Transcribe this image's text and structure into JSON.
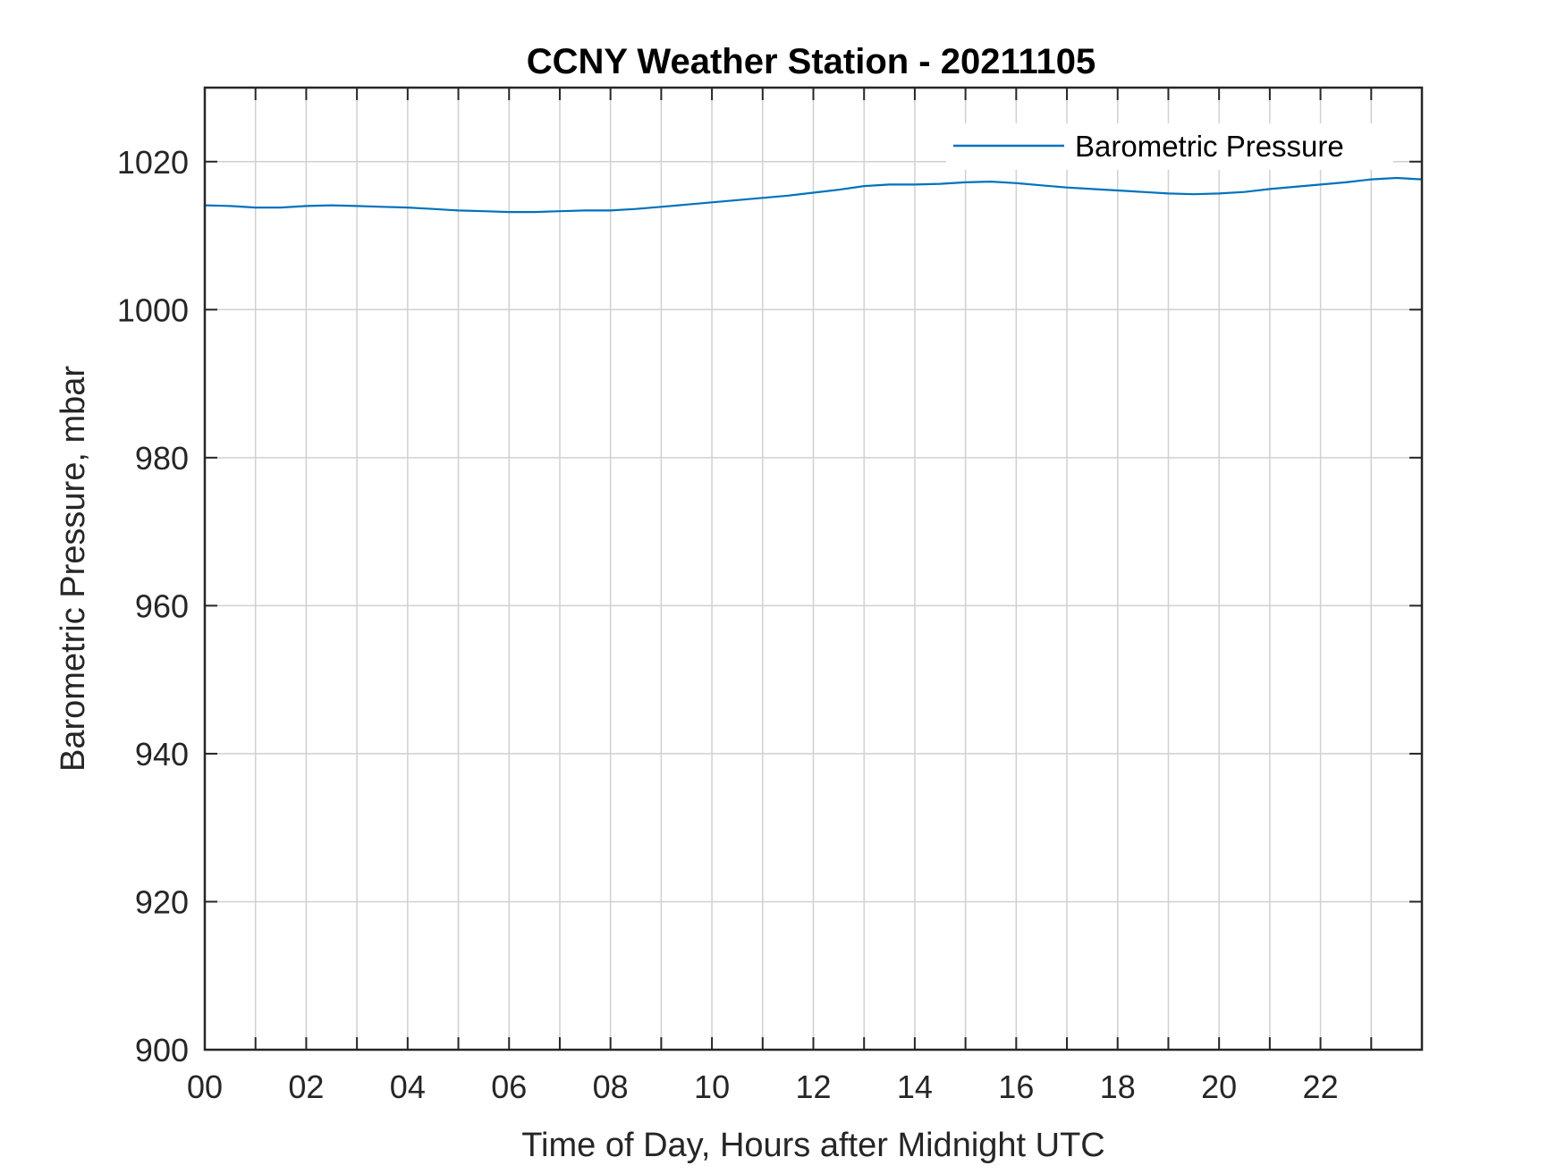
{
  "chart_data": {
    "type": "line",
    "title": "CCNY Weather Station - 20211105",
    "xlabel": "Time of Day, Hours after Midnight UTC",
    "ylabel": "Barometric Pressure, mbar",
    "xlim": [
      0,
      24
    ],
    "ylim": [
      900,
      1030
    ],
    "x_ticks": [
      0,
      2,
      4,
      6,
      8,
      10,
      12,
      14,
      16,
      18,
      20,
      22
    ],
    "x_tick_labels": [
      "00",
      "02",
      "04",
      "06",
      "08",
      "10",
      "12",
      "14",
      "16",
      "18",
      "20",
      "22"
    ],
    "x_minor_grid_step": 1,
    "y_ticks": [
      900,
      920,
      940,
      960,
      980,
      1000,
      1020
    ],
    "y_tick_labels": [
      "900",
      "920",
      "940",
      "960",
      "980",
      "1000",
      "1020"
    ],
    "grid": true,
    "legend_position": "top-right",
    "series": [
      {
        "name": "Barometric Pressure",
        "color": "#0072BD",
        "x": [
          0,
          0.5,
          1,
          1.5,
          2,
          2.5,
          3,
          3.5,
          4,
          4.5,
          5,
          5.5,
          6,
          6.5,
          7,
          7.5,
          8,
          8.5,
          9,
          9.5,
          10,
          10.5,
          11,
          11.5,
          12,
          12.5,
          13,
          13.5,
          14,
          14.5,
          15,
          15.5,
          16,
          16.5,
          17,
          17.5,
          18,
          18.5,
          19,
          19.5,
          20,
          20.5,
          21,
          21.5,
          22,
          22.5,
          23,
          23.5,
          24
        ],
        "y": [
          1014.1,
          1014.0,
          1013.8,
          1013.8,
          1014.0,
          1014.1,
          1014.0,
          1013.9,
          1013.8,
          1013.6,
          1013.4,
          1013.3,
          1013.2,
          1013.2,
          1013.3,
          1013.4,
          1013.4,
          1013.6,
          1013.9,
          1014.2,
          1014.5,
          1014.8,
          1015.1,
          1015.4,
          1015.8,
          1016.2,
          1016.7,
          1016.9,
          1016.9,
          1017.0,
          1017.2,
          1017.3,
          1017.1,
          1016.8,
          1016.5,
          1016.3,
          1016.1,
          1015.9,
          1015.7,
          1015.6,
          1015.7,
          1015.9,
          1016.3,
          1016.6,
          1016.9,
          1017.2,
          1017.6,
          1017.8,
          1017.6
        ]
      }
    ]
  }
}
